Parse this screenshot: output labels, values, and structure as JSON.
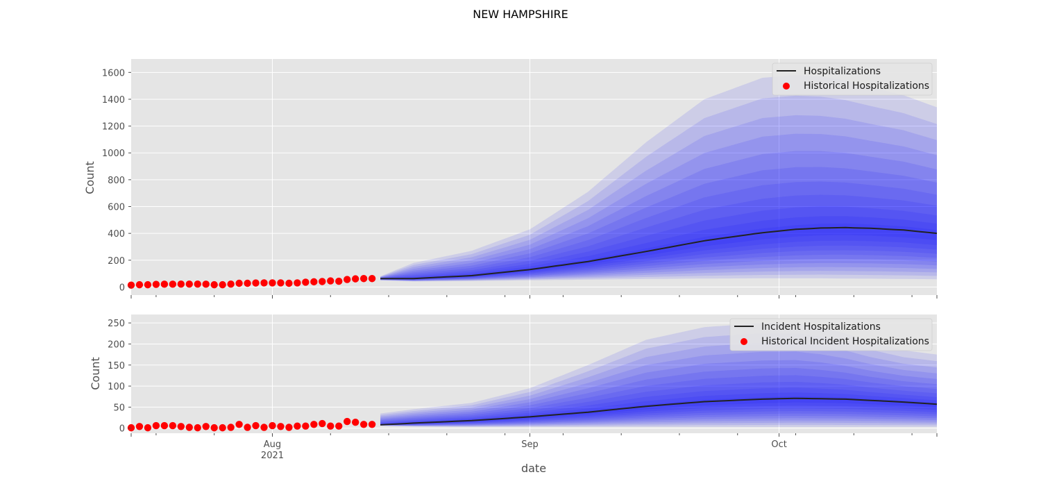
{
  "figure": {
    "suptitle": "NEW HAMPSHIRE",
    "xlabel": "date"
  },
  "colors": {
    "panel_bg": "#e5e5e5",
    "grid": "#ffffff",
    "band": "#0000ff",
    "median_line": "#222222",
    "historical_points": "#ff0000",
    "tick_text": "#4d4d4d"
  },
  "chart_data": [
    {
      "type": "area",
      "ylabel": "Count",
      "ylim": [
        -60,
        1700
      ],
      "yticks": [
        0,
        200,
        400,
        600,
        800,
        1000,
        1200,
        1400,
        1600
      ],
      "grid": true,
      "legend_position": "top-right",
      "legend": [
        "Hospitalizations",
        "Historical Hospitalizations"
      ],
      "x_range": [
        "2021-07-15",
        "2021-10-20"
      ],
      "forecast_start": "2021-08-14",
      "historical": {
        "name": "Historical Hospitalizations",
        "start": "2021-07-15",
        "values": [
          14,
          17,
          17,
          20,
          21,
          21,
          22,
          22,
          22,
          21,
          17,
          17,
          22,
          28,
          28,
          30,
          31,
          31,
          31,
          28,
          31,
          36,
          39,
          41,
          46,
          43,
          56,
          61,
          63,
          63
        ]
      },
      "median": {
        "name": "Hospitalizations",
        "dates": [
          "2021-08-14",
          "2021-08-18",
          "2021-08-25",
          "2021-09-01",
          "2021-09-08",
          "2021-09-15",
          "2021-09-22",
          "2021-09-29",
          "2021-10-03",
          "2021-10-06",
          "2021-10-09",
          "2021-10-12",
          "2021-10-16",
          "2021-10-20"
        ],
        "values": [
          63,
          63,
          85,
          130,
          190,
          265,
          345,
          405,
          430,
          440,
          443,
          438,
          425,
          400
        ]
      },
      "bands": {
        "dates": [
          "2021-08-14",
          "2021-08-18",
          "2021-08-25",
          "2021-09-01",
          "2021-09-08",
          "2021-09-15",
          "2021-09-22",
          "2021-09-29",
          "2021-10-03",
          "2021-10-06",
          "2021-10-09",
          "2021-10-12",
          "2021-10-16",
          "2021-10-20"
        ],
        "upper_outer": [
          80,
          180,
          270,
          430,
          710,
          1080,
          1400,
          1560,
          1580,
          1570,
          1540,
          1490,
          1430,
          1340
        ],
        "lower_outer": [
          50,
          42,
          45,
          50,
          55,
          60,
          63,
          65,
          65,
          65,
          63,
          62,
          60,
          58
        ]
      }
    },
    {
      "type": "area",
      "ylabel": "Count",
      "ylim": [
        -12,
        270
      ],
      "yticks": [
        0,
        50,
        100,
        150,
        200,
        250
      ],
      "grid": true,
      "legend_position": "top-right",
      "legend": [
        "Incident Hospitalizations",
        "Historical Incident Hospitalizations"
      ],
      "x_range": [
        "2021-07-15",
        "2021-10-20"
      ],
      "forecast_start": "2021-08-14",
      "historical": {
        "name": "Historical Incident Hospitalizations",
        "start": "2021-07-15",
        "values": [
          1,
          4,
          1,
          6,
          6,
          6,
          4,
          2,
          1,
          4,
          1,
          1,
          2,
          9,
          2,
          6,
          2,
          6,
          4,
          2,
          5,
          5,
          9,
          11,
          5,
          5,
          16,
          14,
          9,
          9
        ]
      },
      "median": {
        "name": "Incident Hospitalizations",
        "dates": [
          "2021-08-14",
          "2021-08-18",
          "2021-08-25",
          "2021-09-01",
          "2021-09-08",
          "2021-09-15",
          "2021-09-22",
          "2021-09-29",
          "2021-10-03",
          "2021-10-06",
          "2021-10-09",
          "2021-10-12",
          "2021-10-16",
          "2021-10-20"
        ],
        "values": [
          8,
          12,
          18,
          27,
          38,
          52,
          63,
          69,
          71,
          70,
          69,
          66,
          62,
          57
        ]
      },
      "bands": {
        "dates": [
          "2021-08-14",
          "2021-08-18",
          "2021-08-25",
          "2021-09-01",
          "2021-09-08",
          "2021-09-15",
          "2021-09-22",
          "2021-09-29",
          "2021-10-03",
          "2021-10-06",
          "2021-10-09",
          "2021-10-12",
          "2021-10-16",
          "2021-10-20"
        ],
        "upper_outer": [
          35,
          45,
          60,
          95,
          150,
          210,
          240,
          250,
          250,
          240,
          225,
          205,
          185,
          175
        ],
        "lower_outer": [
          6,
          4,
          3,
          3,
          3,
          3,
          3,
          3,
          3,
          3,
          3,
          3,
          3,
          3
        ]
      }
    }
  ],
  "xaxis": {
    "major_ticks": [
      {
        "date": "2021-08-01",
        "label": "Aug",
        "sublabel": "2021"
      },
      {
        "date": "2021-09-01",
        "label": "Sep",
        "sublabel": ""
      },
      {
        "date": "2021-10-01",
        "label": "Oct",
        "sublabel": ""
      }
    ]
  }
}
